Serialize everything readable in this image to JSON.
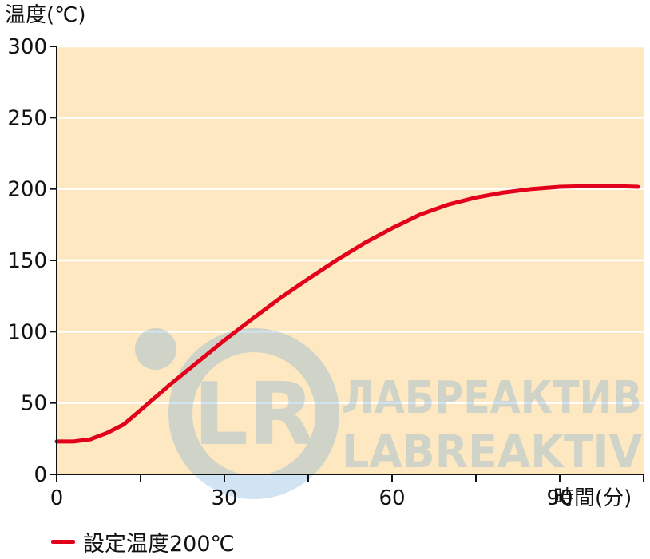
{
  "chart_data": {
    "type": "line",
    "title": "",
    "ylabel": "温度(℃)",
    "xlabel": "時間(分)",
    "xlim": [
      0,
      105
    ],
    "ylim": [
      0,
      300
    ],
    "x_ticks": [
      0,
      30,
      60,
      90
    ],
    "x_minor_ticks": [
      15,
      45,
      75,
      105
    ],
    "y_ticks": [
      0,
      50,
      100,
      150,
      200,
      250,
      300
    ],
    "grid": true,
    "background": "#fde8c2",
    "legend_position": "bottom-left",
    "series": [
      {
        "name": "設定温度200℃",
        "color": "#e3001b",
        "points": [
          [
            0,
            23
          ],
          [
            3,
            23
          ],
          [
            6,
            24.5
          ],
          [
            9,
            29
          ],
          [
            12,
            35
          ],
          [
            15,
            45
          ],
          [
            20,
            62
          ],
          [
            25,
            78
          ],
          [
            30,
            94
          ],
          [
            35,
            109
          ],
          [
            40,
            123.5
          ],
          [
            45,
            137
          ],
          [
            50,
            150
          ],
          [
            55,
            162
          ],
          [
            60,
            172.5
          ],
          [
            65,
            182
          ],
          [
            70,
            189
          ],
          [
            75,
            194
          ],
          [
            80,
            197.5
          ],
          [
            85,
            200
          ],
          [
            90,
            201.5
          ],
          [
            95,
            202
          ],
          [
            100,
            202
          ],
          [
            104,
            201.5
          ]
        ]
      }
    ]
  },
  "watermark": {
    "logo_letters": "LR",
    "line1": "ЛАБРЕАКТИВ",
    "line2": "LABREAKTIV",
    "color": "#5aa0d8"
  }
}
